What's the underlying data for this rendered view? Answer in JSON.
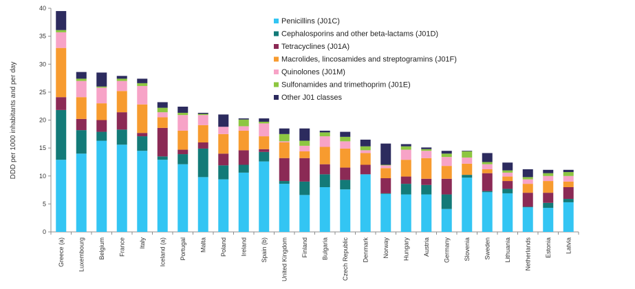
{
  "chart_data": {
    "type": "bar",
    "stacked": true,
    "title": "",
    "xlabel": "",
    "ylabel": "DDD per 1000 inhabitants and per day",
    "ylim": [
      0,
      40
    ],
    "yticks": [
      0,
      5,
      10,
      15,
      20,
      25,
      30,
      35,
      40
    ],
    "grid": false,
    "legend_position": "top-right",
    "categories": [
      "Greece (a)",
      "Luxembourg",
      "Belgium",
      "France",
      "Italy",
      "Iceland (a)",
      "Portugal",
      "Malta",
      "Poland",
      "Ireland",
      "Spain (b)",
      "United Kingdom",
      "Finland",
      "Bulgaria",
      "Czech Republic",
      "Denmark",
      "Norway",
      "Hungary",
      "Austria",
      "Germany",
      "Slovenia",
      "Sweden",
      "Lithuania",
      "Netherlands",
      "Estonia",
      "Latvia"
    ],
    "series": [
      {
        "name": "Penicillins (J01C)",
        "color": "#33c5f3",
        "values": [
          12.9,
          14.0,
          16.3,
          15.6,
          14.5,
          12.9,
          12.1,
          9.8,
          9.4,
          10.6,
          12.6,
          8.6,
          6.6,
          8.0,
          7.6,
          10.3,
          6.8,
          6.7,
          6.7,
          4.1,
          9.7,
          7.1,
          6.9,
          4.4,
          4.3,
          5.3
        ]
      },
      {
        "name": "Cephalosporins and other beta-lactams (J01D)",
        "color": "#137a78",
        "values": [
          8.9,
          4.2,
          1.6,
          2.7,
          2.6,
          0.6,
          1.8,
          5.1,
          2.5,
          1.4,
          1.7,
          0.5,
          2.4,
          2.3,
          1.7,
          0.0,
          0.1,
          1.9,
          1.7,
          2.6,
          0.5,
          0.2,
          0.8,
          0.1,
          0.9,
          0.6
        ]
      },
      {
        "name": "Tetracyclines (J01A)",
        "color": "#8b2a55",
        "values": [
          2.3,
          2.0,
          2.1,
          3.1,
          0.6,
          5.1,
          0.8,
          1.1,
          2.1,
          2.6,
          0.5,
          4.1,
          4.2,
          1.8,
          2.2,
          1.7,
          2.7,
          1.3,
          1.1,
          2.8,
          0.0,
          3.2,
          1.4,
          2.5,
          1.8,
          2.1
        ]
      },
      {
        "name": "Macrolides, lincosamides and streptogramins (J01F)",
        "color": "#f79b2f",
        "values": [
          8.8,
          3.9,
          3.0,
          3.8,
          5.1,
          1.9,
          3.4,
          3.1,
          3.5,
          3.5,
          2.3,
          2.8,
          1.2,
          3.1,
          3.4,
          2.1,
          1.8,
          3.0,
          3.7,
          2.3,
          2.0,
          0.7,
          0.8,
          1.6,
          2.1,
          1.0
        ]
      },
      {
        "name": "Quinolones (J01M)",
        "color": "#f7a3c7",
        "values": [
          2.8,
          2.9,
          2.8,
          1.8,
          3.3,
          0.9,
          2.8,
          1.8,
          1.3,
          0.8,
          2.3,
          0.2,
          1.0,
          1.9,
          1.3,
          0.5,
          0.5,
          1.8,
          1.3,
          1.6,
          1.1,
          0.9,
          0.7,
          0.8,
          0.9,
          1.0
        ]
      },
      {
        "name": "Sulfonamides and trimethoprim (J01E)",
        "color": "#8dc641",
        "values": [
          0.4,
          0.4,
          0.2,
          0.4,
          0.5,
          0.8,
          0.4,
          0.2,
          0.0,
          1.2,
          0.3,
          1.3,
          0.9,
          0.7,
          0.8,
          0.7,
          0.1,
          0.6,
          0.3,
          0.6,
          1.1,
          0.4,
          0.4,
          0.4,
          0.5,
          0.7
        ]
      },
      {
        "name": "Other J01 classes",
        "color": "#2c2b5e",
        "values": [
          3.4,
          1.2,
          2.5,
          0.5,
          0.8,
          1.0,
          1.1,
          0.2,
          2.2,
          0.2,
          0.6,
          1.0,
          2.2,
          0.3,
          0.9,
          1.2,
          3.8,
          0.4,
          0.3,
          0.5,
          0.1,
          1.6,
          1.4,
          1.4,
          0.6,
          0.4
        ]
      }
    ]
  }
}
